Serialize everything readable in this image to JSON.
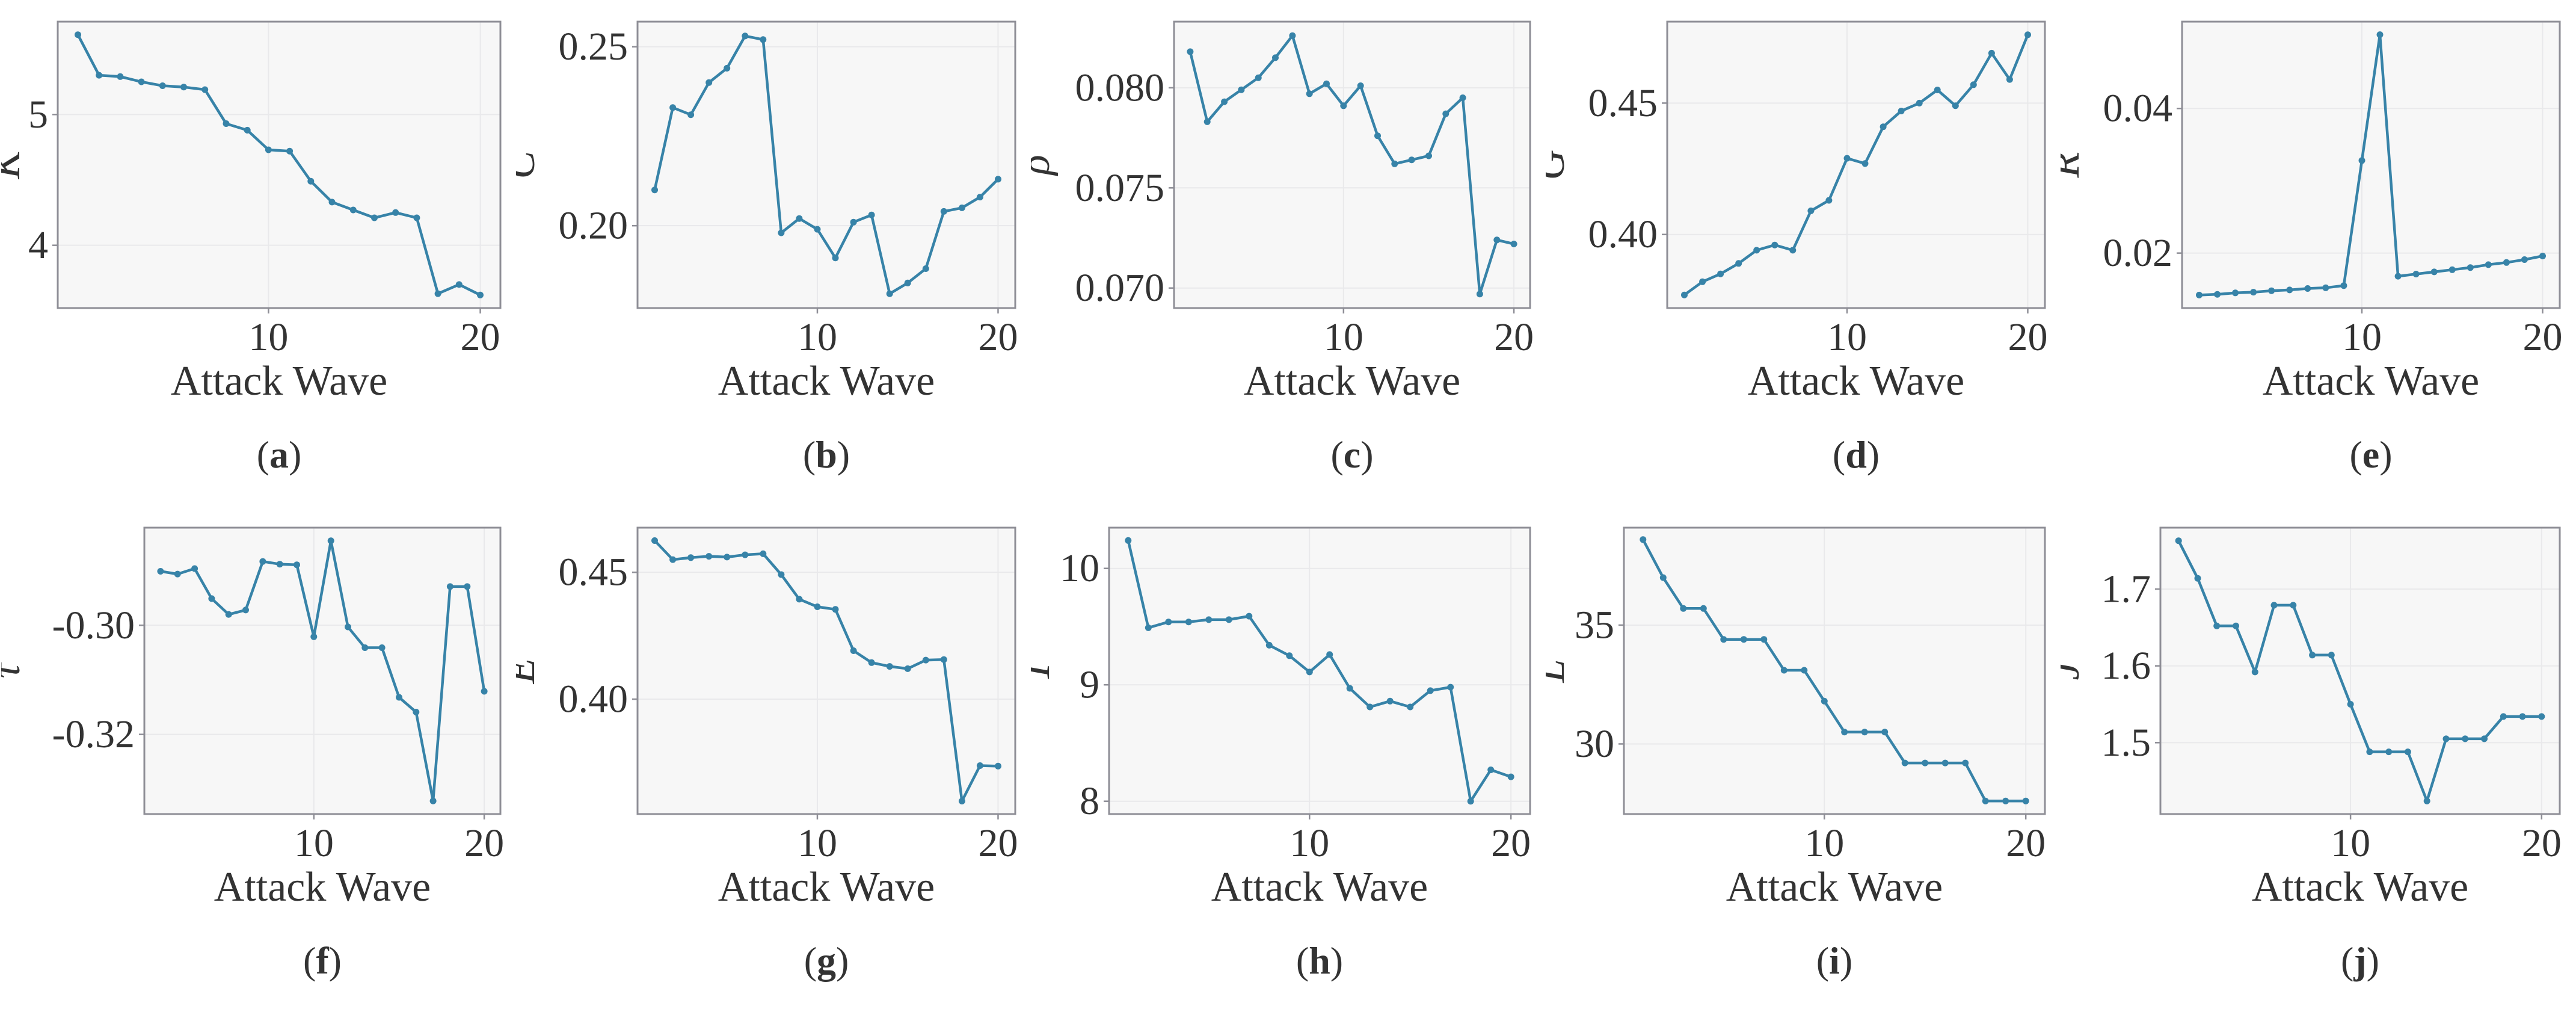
{
  "figure": {
    "xlabel": "Attack Wave",
    "x": [
      1,
      2,
      3,
      4,
      5,
      6,
      7,
      8,
      9,
      10,
      11,
      12,
      13,
      14,
      15,
      16,
      17,
      18,
      19,
      20
    ],
    "xtick_labels": [
      "10",
      "20"
    ],
    "xlim": [
      0.05,
      20.95
    ],
    "grid": true,
    "legend_position": "none",
    "colors": {
      "line": "#3783a8",
      "marker": "#3783a8",
      "plot_bg": "#f7f7f7",
      "grid": "#e9e9eb",
      "spine": "#8e8e96",
      "text": "#333333"
    }
  },
  "chart_data": [
    {
      "panel": "a",
      "type": "line",
      "ylabel": "K",
      "caption_letter": "a",
      "xlabel": "Attack Wave",
      "ytick_labels": [
        "4",
        "5"
      ],
      "ylim": [
        3.52,
        5.71
      ],
      "y": [
        5.61,
        5.3,
        5.29,
        5.25,
        5.22,
        5.21,
        5.19,
        4.93,
        4.88,
        4.73,
        4.72,
        4.49,
        4.33,
        4.27,
        4.21,
        4.25,
        4.21,
        3.63,
        3.7,
        3.62
      ]
    },
    {
      "panel": "b",
      "type": "line",
      "ylabel": "C",
      "caption_letter": "b",
      "xlabel": "Attack Wave",
      "ytick_labels": [
        "0.20",
        "0.25"
      ],
      "ylim": [
        0.177,
        0.257
      ],
      "y": [
        0.21,
        0.233,
        0.231,
        0.24,
        0.244,
        0.253,
        0.252,
        0.198,
        0.202,
        0.199,
        0.191,
        0.201,
        0.203,
        0.181,
        0.184,
        0.188,
        0.204,
        0.205,
        0.208,
        0.213
      ]
    },
    {
      "panel": "c",
      "type": "line",
      "ylabel": "ρ",
      "caption_letter": "c",
      "xlabel": "Attack Wave",
      "ytick_labels": [
        "0.070",
        "0.075",
        "0.080"
      ],
      "ylim": [
        0.069,
        0.0833
      ],
      "y": [
        0.0818,
        0.0783,
        0.0793,
        0.0799,
        0.0805,
        0.0815,
        0.0826,
        0.0797,
        0.0802,
        0.0791,
        0.0801,
        0.0776,
        0.0762,
        0.0764,
        0.0766,
        0.0787,
        0.0795,
        0.0697,
        0.0724,
        0.0722
      ]
    },
    {
      "panel": "d",
      "type": "line",
      "ylabel": "G",
      "caption_letter": "d",
      "xlabel": "Attack Wave",
      "ytick_labels": [
        "0.40",
        "0.45"
      ],
      "ylim": [
        0.372,
        0.481
      ],
      "y": [
        0.377,
        0.382,
        0.385,
        0.389,
        0.394,
        0.396,
        0.394,
        0.409,
        0.413,
        0.429,
        0.427,
        0.441,
        0.447,
        0.45,
        0.455,
        0.449,
        0.457,
        0.469,
        0.459,
        0.476
      ]
    },
    {
      "panel": "e",
      "type": "line",
      "ylabel": "R",
      "caption_letter": "e",
      "xlabel": "Attack Wave",
      "ytick_labels": [
        "0.02",
        "0.04"
      ],
      "ylim": [
        0.0124,
        0.052
      ],
      "y": [
        0.0142,
        0.0143,
        0.0145,
        0.0146,
        0.0148,
        0.0149,
        0.0151,
        0.0152,
        0.0155,
        0.0328,
        0.0502,
        0.0168,
        0.0171,
        0.0174,
        0.0177,
        0.018,
        0.0184,
        0.0187,
        0.0191,
        0.0196
      ]
    },
    {
      "panel": "f",
      "type": "line",
      "ylabel": "τ",
      "caption_letter": "f",
      "xlabel": "Attack Wave",
      "ytick_labels": [
        "-0.32",
        "-0.30"
      ],
      "ylim": [
        -0.3346,
        -0.2821
      ],
      "y": [
        -0.2901,
        -0.2906,
        -0.2896,
        -0.2951,
        -0.298,
        -0.2972,
        -0.2883,
        -0.2888,
        -0.2889,
        -0.3021,
        -0.2845,
        -0.3003,
        -0.3041,
        -0.3041,
        -0.3132,
        -0.3159,
        -0.3322,
        -0.2929,
        -0.2929,
        -0.3121
      ]
    },
    {
      "panel": "g",
      "type": "line",
      "ylabel": "E",
      "caption_letter": "g",
      "xlabel": "Attack Wave",
      "ytick_labels": [
        "0.40",
        "0.45"
      ],
      "ylim": [
        0.3547,
        0.4676
      ],
      "y": [
        0.4625,
        0.455,
        0.4558,
        0.4563,
        0.456,
        0.4569,
        0.4573,
        0.4491,
        0.4394,
        0.4364,
        0.4354,
        0.4191,
        0.4144,
        0.4129,
        0.412,
        0.4154,
        0.4156,
        0.3598,
        0.3738,
        0.3736
      ]
    },
    {
      "panel": "h",
      "type": "line",
      "ylabel": "T",
      "caption_letter": "h",
      "xlabel": "Attack Wave",
      "ytick_labels": [
        "8",
        "9",
        "10"
      ],
      "ylim": [
        7.89,
        10.35
      ],
      "y": [
        10.24,
        9.49,
        9.54,
        9.54,
        9.56,
        9.56,
        9.59,
        9.34,
        9.25,
        9.11,
        9.26,
        8.97,
        8.81,
        8.86,
        8.81,
        8.95,
        8.98,
        8.0,
        8.27,
        8.21
      ]
    },
    {
      "panel": "i",
      "type": "line",
      "ylabel": "L",
      "caption_letter": "i",
      "xlabel": "Attack Wave",
      "ytick_labels": [
        "30",
        "35"
      ],
      "ylim": [
        27.05,
        39.1
      ],
      "y": [
        38.6,
        37.0,
        35.7,
        35.7,
        34.4,
        34.4,
        34.4,
        33.1,
        33.1,
        31.8,
        30.5,
        30.5,
        30.5,
        29.2,
        29.2,
        29.2,
        29.2,
        27.6,
        27.6,
        27.6
      ]
    },
    {
      "panel": "j",
      "type": "line",
      "ylabel": "J",
      "caption_letter": "j",
      "xlabel": "Attack Wave",
      "ytick_labels": [
        "1.5",
        "1.6",
        "1.7"
      ],
      "ylim": [
        1.407,
        1.78
      ],
      "y": [
        1.763,
        1.714,
        1.652,
        1.652,
        1.592,
        1.679,
        1.679,
        1.614,
        1.614,
        1.55,
        1.488,
        1.488,
        1.488,
        1.424,
        1.505,
        1.505,
        1.505,
        1.534,
        1.534,
        1.534
      ]
    }
  ]
}
